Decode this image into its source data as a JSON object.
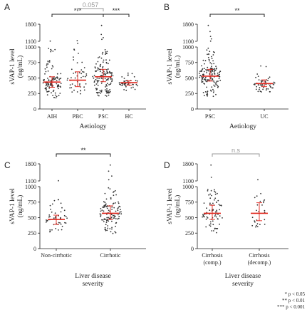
{
  "chart_data": [
    {
      "panel": "A",
      "type": "scatter",
      "xlabel": "Aetiology",
      "ylabel_lines": [
        "sVAP-1 level",
        "(ng/mL)"
      ],
      "categories": [
        "AIH",
        "PBC",
        "PSC",
        "HC"
      ],
      "y_ticks_lower": [
        0,
        250,
        500,
        750,
        1000
      ],
      "y_ticks_upper": [
        1100,
        1800
      ],
      "medians": [
        435,
        465,
        520,
        425
      ],
      "iqr": [
        [
          350,
          520
        ],
        [
          360,
          600
        ],
        [
          440,
          640
        ],
        [
          385,
          455
        ]
      ],
      "groups": [
        {
          "name": "AIH",
          "n": 110,
          "min": 180,
          "max": 980,
          "outliers": [
            1110
          ]
        },
        {
          "name": "PBC",
          "n": 45,
          "min": 230,
          "max": 970,
          "outliers": [
            1130,
            1060
          ]
        },
        {
          "name": "PSC",
          "n": 140,
          "min": 200,
          "max": 960,
          "outliers": [
            1180,
            1250,
            1380,
            1750
          ]
        },
        {
          "name": "HC",
          "n": 42,
          "min": 300,
          "max": 600,
          "outliers": []
        }
      ],
      "significance": [
        {
          "from": 0,
          "to": 2,
          "label": "***",
          "color": "#222222"
        },
        {
          "from": 1,
          "to": 2,
          "label": "0.057",
          "color": "#999999"
        },
        {
          "from": 2,
          "to": 3,
          "label": "***",
          "color": "#222222"
        }
      ]
    },
    {
      "panel": "B",
      "type": "scatter",
      "xlabel": "Aetiology",
      "ylabel_lines": [
        "sVAP-1 level",
        "(ng/mL)"
      ],
      "categories": [
        "PSC",
        "UC"
      ],
      "y_ticks_lower": [
        0,
        250,
        500,
        750,
        1000
      ],
      "y_ticks_upper": [
        1100,
        1800
      ],
      "medians": [
        530,
        410
      ],
      "iqr": [
        [
          450,
          640
        ],
        [
          360,
          470
        ]
      ],
      "groups": [
        {
          "name": "PSC",
          "n": 150,
          "min": 200,
          "max": 990,
          "outliers": [
            1110,
            1200,
            1300,
            1500,
            1750
          ]
        },
        {
          "name": "UC",
          "n": 55,
          "min": 260,
          "max": 700,
          "outliers": []
        }
      ],
      "significance": [
        {
          "from": 0,
          "to": 1,
          "label": "**",
          "color": "#222222"
        }
      ]
    },
    {
      "panel": "C",
      "type": "scatter",
      "xlabel_lines": [
        "Liver disease",
        "severity"
      ],
      "ylabel_lines": [
        "sVAP-1 level",
        "(ng/mL)"
      ],
      "categories": [
        "Non-cirrhotic",
        "Cirrhotic"
      ],
      "y_ticks_lower": [
        0,
        250,
        500,
        750,
        1000
      ],
      "y_ticks_upper": [
        1100,
        1800
      ],
      "medians": [
        470,
        570
      ],
      "iqr": [
        [
          390,
          540
        ],
        [
          470,
          690
        ]
      ],
      "groups": [
        {
          "name": "Non-cirrhotic",
          "n": 45,
          "min": 190,
          "max": 820,
          "outliers": [
            1110
          ]
        },
        {
          "name": "Cirrhotic",
          "n": 110,
          "min": 240,
          "max": 990,
          "outliers": [
            1150,
            1300,
            1500,
            1750
          ]
        }
      ],
      "significance": [
        {
          "from": 0,
          "to": 1,
          "label": "**",
          "color": "#222222"
        }
      ]
    },
    {
      "panel": "D",
      "type": "scatter",
      "xlabel_lines": [
        "Liver disease",
        "severity"
      ],
      "ylabel_lines": [
        "sVAP-1 level",
        "(ng/mL)"
      ],
      "categories": [
        "Cirrhosis (comp.)",
        "Cirrhosis (decomp.)"
      ],
      "category_lines": [
        [
          "Cirrhosis",
          "(comp.)"
        ],
        [
          "Cirrhosis",
          "(decomp.)"
        ]
      ],
      "y_ticks_lower": [
        0,
        250,
        500,
        750,
        1000
      ],
      "y_ticks_upper": [
        1100,
        1800
      ],
      "medians": [
        570,
        570
      ],
      "iqr": [
        [
          470,
          700
        ],
        [
          450,
          740
        ]
      ],
      "groups": [
        {
          "name": "Cirrhosis (comp.)",
          "n": 75,
          "min": 240,
          "max": 960,
          "outliers": [
            1250,
            1750
          ]
        },
        {
          "name": "Cirrhosis (decomp.)",
          "n": 25,
          "min": 330,
          "max": 900,
          "outliers": [
            1150
          ]
        }
      ],
      "significance": [
        {
          "from": 0,
          "to": 1,
          "label": "n.s",
          "color": "#999999"
        }
      ]
    }
  ],
  "significance_key": [
    "* p < 0.05",
    "** p < 0.01",
    "*** p < 0.001"
  ]
}
